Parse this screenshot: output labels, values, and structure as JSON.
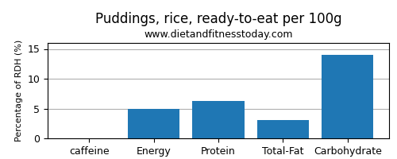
{
  "chart_data": {
    "type": "bar",
    "title": "Puddings, rice, ready-to-eat per 100g",
    "subtitle": "www.dietandfitnesstoday.com",
    "categories": [
      "caffeine",
      "Energy",
      "Protein",
      "Total-Fat",
      "Carbohydrate"
    ],
    "values": [
      0,
      5.0,
      6.3,
      3.1,
      14.0
    ],
    "ylabel": "Percentage of RDH (%)",
    "ylim": [
      0,
      16
    ],
    "yticks": [
      0,
      5,
      10,
      15
    ],
    "grid": true
  }
}
